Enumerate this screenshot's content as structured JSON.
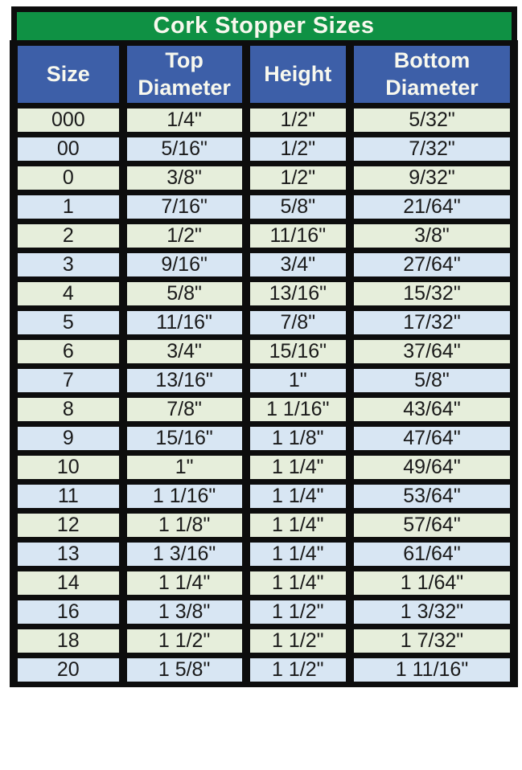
{
  "title": "Cork Stopper Sizes",
  "columns": [
    {
      "key": "size",
      "label": "Size",
      "lines": [
        "Size"
      ]
    },
    {
      "key": "top_diameter",
      "label": "Top Diameter",
      "lines": [
        "Top",
        "Diameter"
      ]
    },
    {
      "key": "height",
      "label": "Height",
      "lines": [
        "Height"
      ]
    },
    {
      "key": "bottom_diameter",
      "label": "Bottom Diameter",
      "lines": [
        "Bottom",
        "Diameter"
      ]
    }
  ],
  "rows": [
    {
      "size": "000",
      "top_diameter": "1/4\"",
      "height": "1/2\"",
      "bottom_diameter": "5/32\""
    },
    {
      "size": "00",
      "top_diameter": "5/16\"",
      "height": "1/2\"",
      "bottom_diameter": "7/32\""
    },
    {
      "size": "0",
      "top_diameter": "3/8\"",
      "height": "1/2\"",
      "bottom_diameter": "9/32\""
    },
    {
      "size": "1",
      "top_diameter": "7/16\"",
      "height": "5/8\"",
      "bottom_diameter": "21/64\""
    },
    {
      "size": "2",
      "top_diameter": "1/2\"",
      "height": "11/16\"",
      "bottom_diameter": "3/8\""
    },
    {
      "size": "3",
      "top_diameter": "9/16\"",
      "height": "3/4\"",
      "bottom_diameter": "27/64\""
    },
    {
      "size": "4",
      "top_diameter": "5/8\"",
      "height": "13/16\"",
      "bottom_diameter": "15/32\""
    },
    {
      "size": "5",
      "top_diameter": "11/16\"",
      "height": "7/8\"",
      "bottom_diameter": "17/32\""
    },
    {
      "size": "6",
      "top_diameter": "3/4\"",
      "height": "15/16\"",
      "bottom_diameter": "37/64\""
    },
    {
      "size": "7",
      "top_diameter": "13/16\"",
      "height": "1\"",
      "bottom_diameter": "5/8\""
    },
    {
      "size": "8",
      "top_diameter": "7/8\"",
      "height": "1 1/16\"",
      "bottom_diameter": "43/64\""
    },
    {
      "size": "9",
      "top_diameter": "15/16\"",
      "height": "1 1/8\"",
      "bottom_diameter": "47/64\""
    },
    {
      "size": "10",
      "top_diameter": "1\"",
      "height": "1 1/4\"",
      "bottom_diameter": "49/64\""
    },
    {
      "size": "11",
      "top_diameter": "1 1/16\"",
      "height": "1 1/4\"",
      "bottom_diameter": "53/64\""
    },
    {
      "size": "12",
      "top_diameter": "1 1/8\"",
      "height": "1 1/4\"",
      "bottom_diameter": "57/64\""
    },
    {
      "size": "13",
      "top_diameter": "1 3/16\"",
      "height": "1 1/4\"",
      "bottom_diameter": "61/64\""
    },
    {
      "size": "14",
      "top_diameter": "1 1/4\"",
      "height": "1 1/4\"",
      "bottom_diameter": "1 1/64\""
    },
    {
      "size": "16",
      "top_diameter": "1 3/8\"",
      "height": "1 1/2\"",
      "bottom_diameter": "1 3/32\""
    },
    {
      "size": "18",
      "top_diameter": "1 1/2\"",
      "height": "1 1/2\"",
      "bottom_diameter": "1 7/32\""
    },
    {
      "size": "20",
      "top_diameter": "1 5/8\"",
      "height": "1 1/2\"",
      "bottom_diameter": "1 11/16\""
    }
  ],
  "colors": {
    "title_bg": "#0f9144",
    "header_bg": "#3d5fa8",
    "row_green": "#e6eedb",
    "row_blue": "#d8e6f3",
    "border": "#0d0d0d",
    "header_text": "#f8f8ee",
    "cell_text": "#1a1a1a"
  },
  "chart_data": {
    "type": "table",
    "title": "Cork Stopper Sizes",
    "columns": [
      "Size",
      "Top Diameter",
      "Height",
      "Bottom Diameter"
    ],
    "rows": [
      [
        "000",
        "1/4\"",
        "1/2\"",
        "5/32\""
      ],
      [
        "00",
        "5/16\"",
        "1/2\"",
        "7/32\""
      ],
      [
        "0",
        "3/8\"",
        "1/2\"",
        "9/32\""
      ],
      [
        "1",
        "7/16\"",
        "5/8\"",
        "21/64\""
      ],
      [
        "2",
        "1/2\"",
        "11/16\"",
        "3/8\""
      ],
      [
        "3",
        "9/16\"",
        "3/4\"",
        "27/64\""
      ],
      [
        "4",
        "5/8\"",
        "13/16\"",
        "15/32\""
      ],
      [
        "5",
        "11/16\"",
        "7/8\"",
        "17/32\""
      ],
      [
        "6",
        "3/4\"",
        "15/16\"",
        "37/64\""
      ],
      [
        "7",
        "13/16\"",
        "1\"",
        "5/8\""
      ],
      [
        "8",
        "7/8\"",
        "1 1/16\"",
        "43/64\""
      ],
      [
        "9",
        "15/16\"",
        "1 1/8\"",
        "47/64\""
      ],
      [
        "10",
        "1\"",
        "1 1/4\"",
        "49/64\""
      ],
      [
        "11",
        "1 1/16\"",
        "1 1/4\"",
        "53/64\""
      ],
      [
        "12",
        "1 1/8\"",
        "1 1/4\"",
        "57/64\""
      ],
      [
        "13",
        "1 3/16\"",
        "1 1/4\"",
        "61/64\""
      ],
      [
        "14",
        "1 1/4\"",
        "1 1/4\"",
        "1 1/64\""
      ],
      [
        "16",
        "1 3/8\"",
        "1 1/2\"",
        "1 3/32\""
      ],
      [
        "18",
        "1 1/2\"",
        "1 1/2\"",
        "1 7/32\""
      ],
      [
        "20",
        "1 5/8\"",
        "1 1/2\"",
        "1 11/16\""
      ]
    ],
    "legend_position": "none",
    "row_color_pattern": [
      "row_green",
      "row_blue"
    ]
  }
}
